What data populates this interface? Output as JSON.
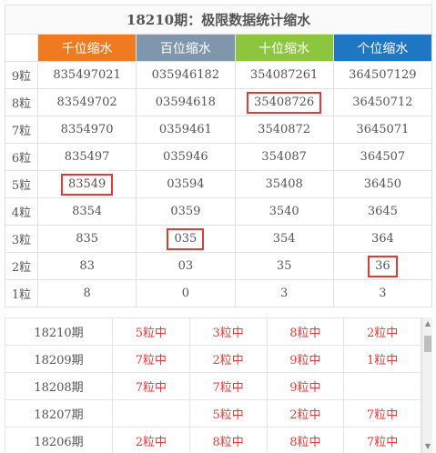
{
  "title": "18210期：极限数据统计缩水",
  "headers": [
    "千位缩水",
    "百位缩水",
    "十位缩水",
    "个位缩水"
  ],
  "colors": {
    "thousands": "#f07a20",
    "hundreds": "#7f96ad",
    "tens": "#8cc63e",
    "ones": "#1f76c2",
    "highlight": "#e23a3a"
  },
  "rows": [
    {
      "label": "9粒",
      "values": [
        "835497021",
        "035946182",
        "354087261",
        "364507129"
      ]
    },
    {
      "label": "8粒",
      "values": [
        "83549702",
        "03594618",
        "35408726",
        "36450712"
      ]
    },
    {
      "label": "7粒",
      "values": [
        "8354970",
        "0359461",
        "3540872",
        "3645071"
      ]
    },
    {
      "label": "6粒",
      "values": [
        "835497",
        "035946",
        "354087",
        "364507"
      ]
    },
    {
      "label": "5粒",
      "values": [
        "83549",
        "03594",
        "35408",
        "36450"
      ]
    },
    {
      "label": "4粒",
      "values": [
        "8354",
        "0359",
        "3540",
        "3645"
      ]
    },
    {
      "label": "3粒",
      "values": [
        "835",
        "035",
        "354",
        "364"
      ]
    },
    {
      "label": "2粒",
      "values": [
        "83",
        "03",
        "35",
        "36"
      ]
    },
    {
      "label": "1粒",
      "values": [
        "8",
        "0",
        "3",
        "3"
      ]
    }
  ],
  "history": [
    {
      "period": "18210期",
      "hits": [
        "5粒中",
        "3粒中",
        "8粒中",
        "2粒中"
      ]
    },
    {
      "period": "18209期",
      "hits": [
        "7粒中",
        "2粒中",
        "9粒中",
        "1粒中"
      ]
    },
    {
      "period": "18208期",
      "hits": [
        "7粒中",
        "7粒中",
        "9粒中",
        ""
      ]
    },
    {
      "period": "18207期",
      "hits": [
        "",
        "5粒中",
        "2粒中",
        "7粒中"
      ]
    },
    {
      "period": "18206期",
      "hits": [
        "2粒中",
        "8粒中",
        "8粒中",
        "7粒中"
      ]
    }
  ],
  "scroll": {
    "up": "▲",
    "down": "▼"
  }
}
